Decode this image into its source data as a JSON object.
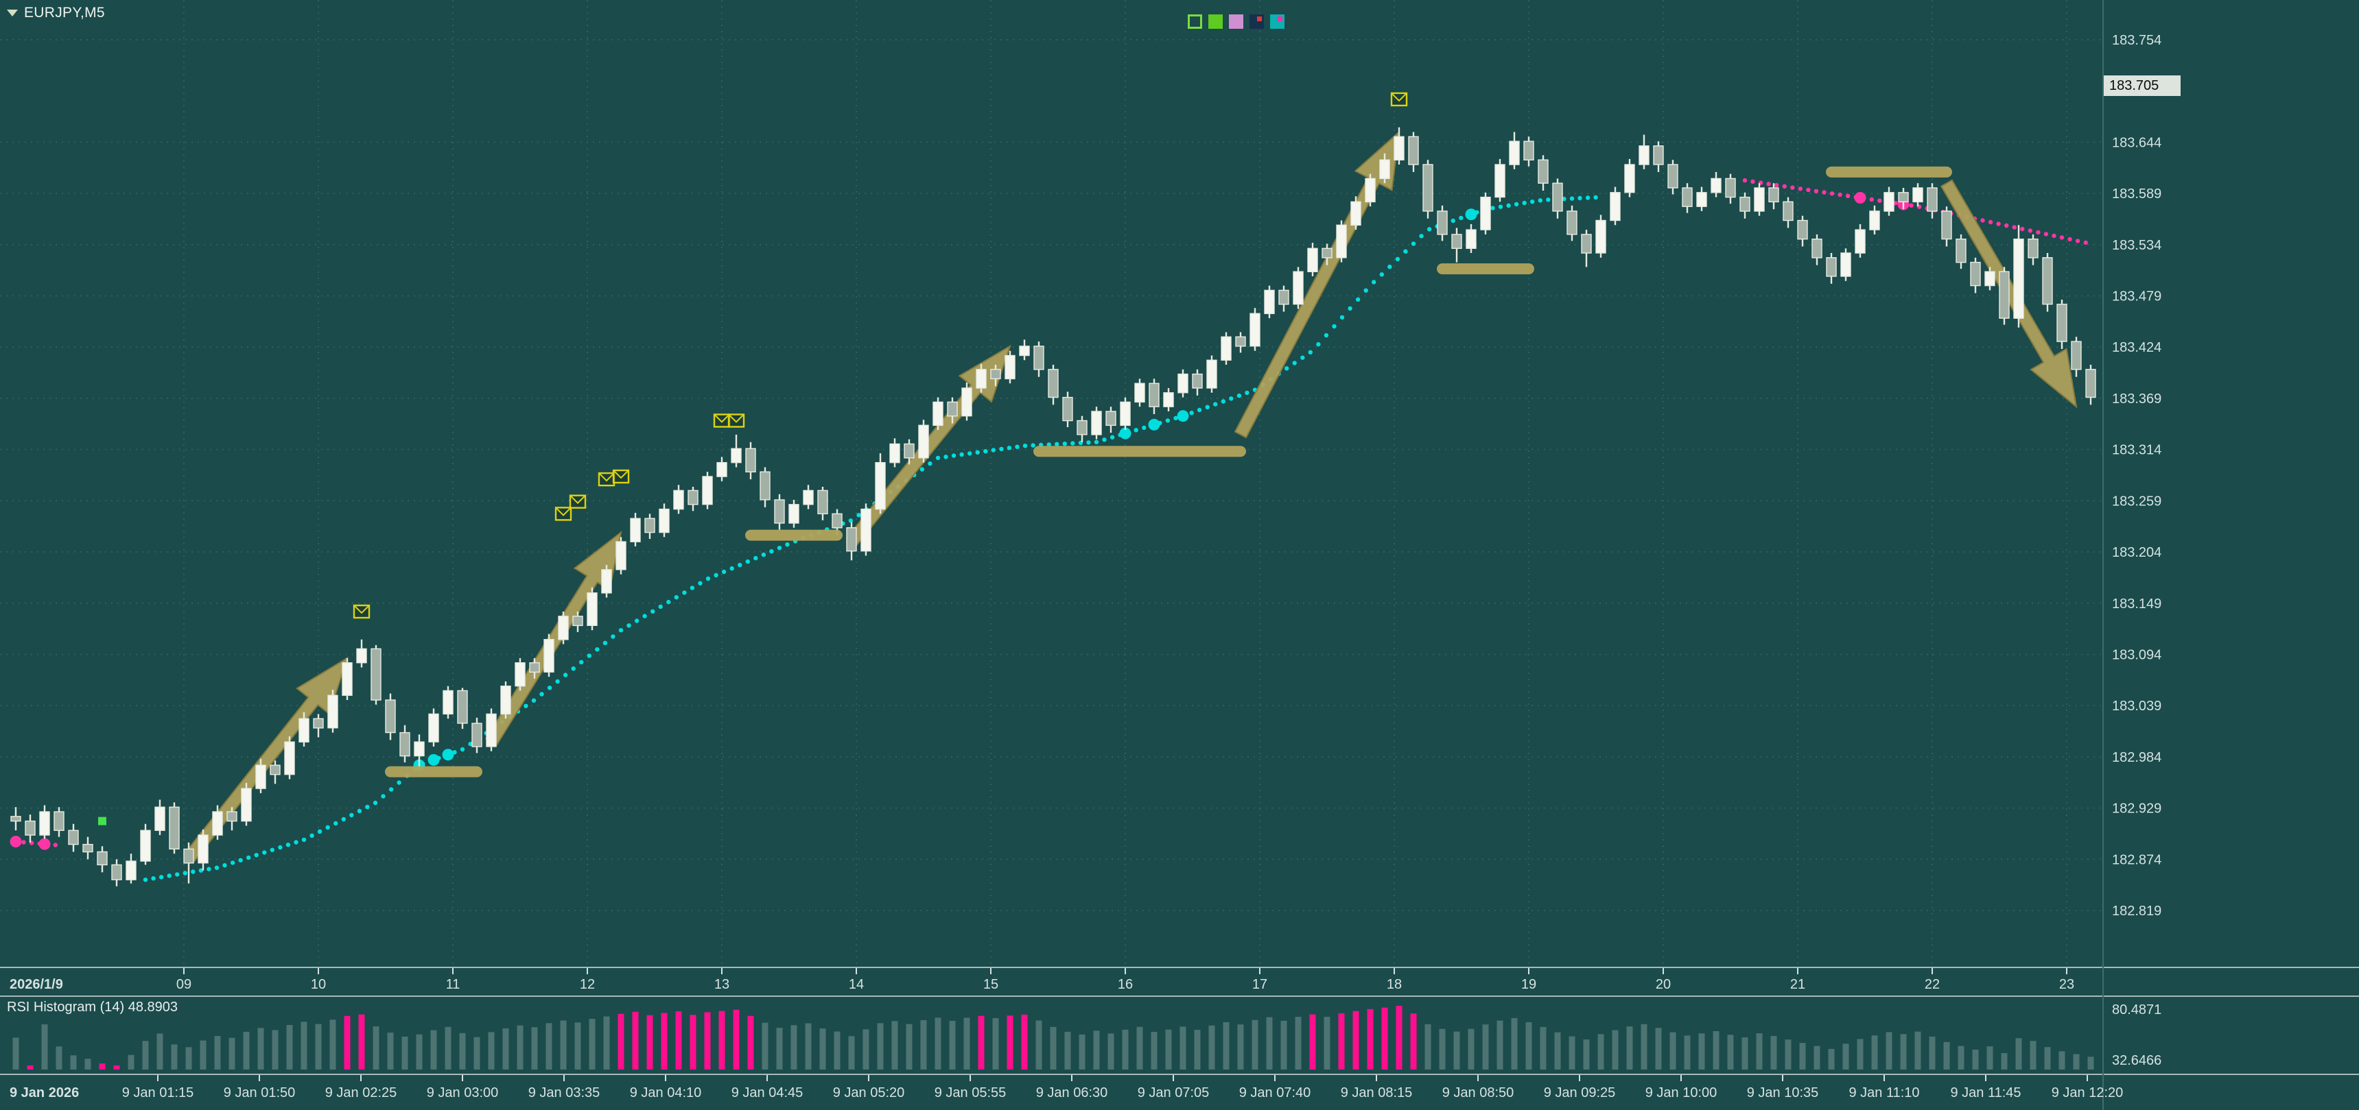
{
  "window": {
    "symbol_label": "EURJPY,M5"
  },
  "toolbar_icons": [
    {
      "name": "hollow-green-square-icon",
      "style": "outline",
      "color": "#7bdc40"
    },
    {
      "name": "green-square-icon",
      "style": "fill",
      "color": "#5ecb21"
    },
    {
      "name": "plum-square-icon",
      "style": "fill",
      "color": "#d08fd0"
    },
    {
      "name": "navy-candle-icon",
      "style": "fill",
      "color": "#16314d",
      "accent": "#e03a3a"
    },
    {
      "name": "teal-wave-icon",
      "style": "fill",
      "color": "#0eb0b0",
      "accent": "#ff2fa4"
    }
  ],
  "price_axis": {
    "current_price": "183.705",
    "labels": [
      "183.754",
      "183.644",
      "183.589",
      "183.534",
      "183.479",
      "183.424",
      "183.369",
      "183.314",
      "183.259",
      "183.204",
      "183.149",
      "183.094",
      "183.039",
      "182.984",
      "182.929",
      "182.874",
      "182.819"
    ]
  },
  "time_axis": {
    "date_label": "2026/1/9",
    "hour_labels": [
      "09",
      "10",
      "11",
      "12",
      "13",
      "14",
      "15",
      "16",
      "17",
      "18",
      "19",
      "20",
      "21",
      "22",
      "23"
    ]
  },
  "bottom_axis": {
    "labels": [
      "9 Jan 2026",
      "9 Jan 01:15",
      "9 Jan 01:50",
      "9 Jan 02:25",
      "9 Jan 03:00",
      "9 Jan 03:35",
      "9 Jan 04:10",
      "9 Jan 04:45",
      "9 Jan 05:20",
      "9 Jan 05:55",
      "9 Jan 06:30",
      "9 Jan 07:05",
      "9 Jan 07:40",
      "9 Jan 08:15",
      "9 Jan 08:50",
      "9 Jan 09:25",
      "9 Jan 10:00",
      "9 Jan 10:35",
      "9 Jan 11:10",
      "9 Jan 11:45",
      "9 Jan 12:20"
    ]
  },
  "indicator": {
    "label": "RSI Histogram (14) 48.8903",
    "scale_max": "80.4871",
    "scale_min": "32.6466"
  },
  "colors": {
    "background": "#1b4b4b",
    "grid": "#2d6161",
    "bull": "#f5f6ef",
    "bear": "#a3b0a6",
    "wick": "#e7eae0",
    "trend_up": "#00dede",
    "trend_down": "#ff35a6",
    "olive": "#b1a35c",
    "olive_dark": "#877b3e",
    "yellow": "#ddd313",
    "buy": "#44e04e",
    "rsi_bar": "#4d7372",
    "rsi_hot": "#ff0e8e",
    "axis_text": "#d7e2e2",
    "separator": "#a9b9b9",
    "vseparator": "#3c6e6e",
    "price_box_bg": "#dde3dd",
    "price_box_text": "#0b0b0b"
  },
  "chart_data": {
    "type": "candlestick",
    "symbol": "EURJPY",
    "timeframe": "M5",
    "visible_price_min": 182.819,
    "visible_price_max": 183.754,
    "price_grid_step": 0.055,
    "candles": [
      [
        182.92,
        182.93,
        182.905,
        182.915
      ],
      [
        182.915,
        182.922,
        182.892,
        182.9
      ],
      [
        182.9,
        182.932,
        182.896,
        182.925
      ],
      [
        182.925,
        182.93,
        182.898,
        182.905
      ],
      [
        182.905,
        182.912,
        182.882,
        182.89
      ],
      [
        182.89,
        182.898,
        182.874,
        182.882
      ],
      [
        182.882,
        182.888,
        182.86,
        182.868
      ],
      [
        182.868,
        182.874,
        182.845,
        182.852
      ],
      [
        182.852,
        182.88,
        182.848,
        182.872
      ],
      [
        182.872,
        182.912,
        182.868,
        182.905
      ],
      [
        182.905,
        182.938,
        182.9,
        182.93
      ],
      [
        182.93,
        182.935,
        182.88,
        182.885
      ],
      [
        182.885,
        182.892,
        182.848,
        182.87
      ],
      [
        182.87,
        182.906,
        182.862,
        182.9
      ],
      [
        182.9,
        182.932,
        182.895,
        182.925
      ],
      [
        182.925,
        182.93,
        182.905,
        182.915
      ],
      [
        182.915,
        182.956,
        182.91,
        182.95
      ],
      [
        182.95,
        182.982,
        182.945,
        182.975
      ],
      [
        182.975,
        182.98,
        182.955,
        182.965
      ],
      [
        182.965,
        183.006,
        182.96,
        183.0
      ],
      [
        183.0,
        183.032,
        182.995,
        183.025
      ],
      [
        183.025,
        183.03,
        183.005,
        183.015
      ],
      [
        183.015,
        183.056,
        183.01,
        183.05
      ],
      [
        183.05,
        183.09,
        183.045,
        183.085
      ],
      [
        183.085,
        183.11,
        183.08,
        183.1
      ],
      [
        183.1,
        183.104,
        183.04,
        183.045
      ],
      [
        183.045,
        183.052,
        183.002,
        183.01
      ],
      [
        183.01,
        183.018,
        182.978,
        182.985
      ],
      [
        182.985,
        183.008,
        182.972,
        183.0
      ],
      [
        183.0,
        183.036,
        182.995,
        183.03
      ],
      [
        183.03,
        183.06,
        183.025,
        183.055
      ],
      [
        183.055,
        183.058,
        183.014,
        183.02
      ],
      [
        183.02,
        183.026,
        182.988,
        182.995
      ],
      [
        182.995,
        183.036,
        182.99,
        183.03
      ],
      [
        183.03,
        183.065,
        183.025,
        183.06
      ],
      [
        183.06,
        183.09,
        183.055,
        183.085
      ],
      [
        183.085,
        183.09,
        183.068,
        183.075
      ],
      [
        183.075,
        183.116,
        183.07,
        183.11
      ],
      [
        183.11,
        183.14,
        183.105,
        183.135
      ],
      [
        183.135,
        183.14,
        183.118,
        183.125
      ],
      [
        183.125,
        183.166,
        183.12,
        183.16
      ],
      [
        183.16,
        183.19,
        183.155,
        183.185
      ],
      [
        183.185,
        183.22,
        183.18,
        183.215
      ],
      [
        183.215,
        183.246,
        183.21,
        183.24
      ],
      [
        183.24,
        183.245,
        183.218,
        183.225
      ],
      [
        183.225,
        183.256,
        183.22,
        183.25
      ],
      [
        183.25,
        183.276,
        183.245,
        183.27
      ],
      [
        183.27,
        183.274,
        183.248,
        183.255
      ],
      [
        183.255,
        183.29,
        183.25,
        183.285
      ],
      [
        183.285,
        183.306,
        183.28,
        183.3
      ],
      [
        183.3,
        183.33,
        183.295,
        183.315
      ],
      [
        183.315,
        183.322,
        183.282,
        183.29
      ],
      [
        183.29,
        183.295,
        183.252,
        183.26
      ],
      [
        183.26,
        183.266,
        183.228,
        183.235
      ],
      [
        183.235,
        183.26,
        183.23,
        183.255
      ],
      [
        183.255,
        183.276,
        183.25,
        183.27
      ],
      [
        183.27,
        183.274,
        183.238,
        183.245
      ],
      [
        183.245,
        183.25,
        183.222,
        183.23
      ],
      [
        183.23,
        183.236,
        183.195,
        183.205
      ],
      [
        183.205,
        183.256,
        183.2,
        183.25
      ],
      [
        183.25,
        183.31,
        183.245,
        183.3
      ],
      [
        183.3,
        183.326,
        183.295,
        183.32
      ],
      [
        183.32,
        183.325,
        183.298,
        183.305
      ],
      [
        183.305,
        183.346,
        183.3,
        183.34
      ],
      [
        183.34,
        183.37,
        183.335,
        183.365
      ],
      [
        183.365,
        183.37,
        183.342,
        183.35
      ],
      [
        183.35,
        183.386,
        183.345,
        183.38
      ],
      [
        183.38,
        183.406,
        183.375,
        183.4
      ],
      [
        183.4,
        183.405,
        183.382,
        183.39
      ],
      [
        183.39,
        183.42,
        183.385,
        183.415
      ],
      [
        183.415,
        183.432,
        183.41,
        183.425
      ],
      [
        183.425,
        183.43,
        183.392,
        183.4
      ],
      [
        183.4,
        183.405,
        183.362,
        183.37
      ],
      [
        183.37,
        183.376,
        183.338,
        183.345
      ],
      [
        183.345,
        183.35,
        183.322,
        183.33
      ],
      [
        183.33,
        183.36,
        183.325,
        183.355
      ],
      [
        183.355,
        183.36,
        183.332,
        183.34
      ],
      [
        183.34,
        183.37,
        183.335,
        183.365
      ],
      [
        183.365,
        183.39,
        183.36,
        183.385
      ],
      [
        183.385,
        183.39,
        183.352,
        183.36
      ],
      [
        183.36,
        183.38,
        183.355,
        183.375
      ],
      [
        183.375,
        183.4,
        183.37,
        183.395
      ],
      [
        183.395,
        183.4,
        183.372,
        183.38
      ],
      [
        183.38,
        183.415,
        183.375,
        183.41
      ],
      [
        183.41,
        183.44,
        183.405,
        183.435
      ],
      [
        183.435,
        183.44,
        183.418,
        183.425
      ],
      [
        183.425,
        183.466,
        183.42,
        183.46
      ],
      [
        183.46,
        183.49,
        183.455,
        183.485
      ],
      [
        183.485,
        183.49,
        183.462,
        183.47
      ],
      [
        183.47,
        183.51,
        183.465,
        183.505
      ],
      [
        183.505,
        183.536,
        183.5,
        183.53
      ],
      [
        183.53,
        183.535,
        183.512,
        183.52
      ],
      [
        183.52,
        183.56,
        183.515,
        183.555
      ],
      [
        183.555,
        183.586,
        183.55,
        183.58
      ],
      [
        183.58,
        183.61,
        183.575,
        183.605
      ],
      [
        183.605,
        183.632,
        183.6,
        183.625
      ],
      [
        183.625,
        183.66,
        183.62,
        183.65
      ],
      [
        183.65,
        183.655,
        183.612,
        183.62
      ],
      [
        183.62,
        183.625,
        183.562,
        183.57
      ],
      [
        183.57,
        183.576,
        183.538,
        183.545
      ],
      [
        183.545,
        183.552,
        183.515,
        183.53
      ],
      [
        183.53,
        183.556,
        183.525,
        183.55
      ],
      [
        183.55,
        183.59,
        183.545,
        183.585
      ],
      [
        183.585,
        183.626,
        183.58,
        183.62
      ],
      [
        183.62,
        183.655,
        183.615,
        183.645
      ],
      [
        183.645,
        183.65,
        183.618,
        183.625
      ],
      [
        183.625,
        183.63,
        183.592,
        183.6
      ],
      [
        183.6,
        183.605,
        183.562,
        183.57
      ],
      [
        183.57,
        183.576,
        183.538,
        183.545
      ],
      [
        183.545,
        183.55,
        183.51,
        183.525
      ],
      [
        183.525,
        183.566,
        183.52,
        183.56
      ],
      [
        183.56,
        183.596,
        183.555,
        183.59
      ],
      [
        183.59,
        183.626,
        183.585,
        183.62
      ],
      [
        183.62,
        183.652,
        183.615,
        183.64
      ],
      [
        183.64,
        183.645,
        183.612,
        183.62
      ],
      [
        183.62,
        183.625,
        183.588,
        183.595
      ],
      [
        183.595,
        183.6,
        183.568,
        183.575
      ],
      [
        183.575,
        183.596,
        183.57,
        183.59
      ],
      [
        183.59,
        183.612,
        183.585,
        183.605
      ],
      [
        183.605,
        183.61,
        183.578,
        183.585
      ],
      [
        183.585,
        183.59,
        183.562,
        183.57
      ],
      [
        183.57,
        183.6,
        183.565,
        183.595
      ],
      [
        183.595,
        183.6,
        183.572,
        183.58
      ],
      [
        183.58,
        183.585,
        183.552,
        183.56
      ],
      [
        183.56,
        183.565,
        183.532,
        183.54
      ],
      [
        183.54,
        183.545,
        183.512,
        183.52
      ],
      [
        183.52,
        183.525,
        183.492,
        183.5
      ],
      [
        183.5,
        183.53,
        183.495,
        183.525
      ],
      [
        183.525,
        183.556,
        183.52,
        183.55
      ],
      [
        183.55,
        183.576,
        183.545,
        183.57
      ],
      [
        183.57,
        183.596,
        183.565,
        183.59
      ],
      [
        183.59,
        183.595,
        183.572,
        183.58
      ],
      [
        183.58,
        183.6,
        183.575,
        183.595
      ],
      [
        183.595,
        183.6,
        183.562,
        183.57
      ],
      [
        183.57,
        183.575,
        183.532,
        183.54
      ],
      [
        183.54,
        183.545,
        183.508,
        183.515
      ],
      [
        183.515,
        183.52,
        183.482,
        183.49
      ],
      [
        183.49,
        183.51,
        183.485,
        183.505
      ],
      [
        183.505,
        183.51,
        183.448,
        183.455
      ],
      [
        183.455,
        183.555,
        183.445,
        183.54
      ],
      [
        183.54,
        183.545,
        183.512,
        183.52
      ],
      [
        183.52,
        183.525,
        183.462,
        183.47
      ],
      [
        183.47,
        183.475,
        183.422,
        183.43
      ],
      [
        183.43,
        183.435,
        183.392,
        183.4
      ],
      [
        183.4,
        183.405,
        183.362,
        183.37
      ]
    ],
    "trend_line_up_points": [
      [
        9,
        182.852
      ],
      [
        14,
        182.865
      ],
      [
        20,
        182.895
      ],
      [
        25,
        182.935
      ],
      [
        28,
        182.975
      ],
      [
        31,
        182.992
      ],
      [
        36,
        183.045
      ],
      [
        42,
        183.12
      ],
      [
        48,
        183.175
      ],
      [
        54,
        183.215
      ],
      [
        58,
        183.238
      ],
      [
        64,
        183.305
      ],
      [
        70,
        183.318
      ],
      [
        75,
        183.322
      ],
      [
        81,
        183.35
      ],
      [
        86,
        183.378
      ],
      [
        90,
        183.42
      ],
      [
        94,
        183.49
      ],
      [
        98,
        183.55
      ],
      [
        102,
        183.572
      ],
      [
        106,
        183.582
      ],
      [
        110,
        183.585
      ]
    ],
    "trend_line_down_left_points": [
      [
        0,
        182.893
      ],
      [
        3,
        182.889
      ]
    ],
    "trend_line_down_right_points": [
      [
        120,
        183.603
      ],
      [
        132,
        183.575
      ],
      [
        144,
        183.535
      ]
    ],
    "trend_markers_up": [
      28,
      29,
      30,
      77,
      79,
      81,
      101
    ],
    "trend_markers_down_left": [
      0,
      2
    ],
    "trend_markers_down_right": [
      128,
      131
    ],
    "buy_markers": [
      [
        6,
        182.915
      ]
    ],
    "arrows": [
      {
        "from": [
          12,
          182.875
        ],
        "to": [
          23,
          183.09
        ],
        "dir": "up"
      },
      {
        "from": [
          33,
          183.0
        ],
        "to": [
          42,
          183.225
        ],
        "dir": "up"
      },
      {
        "from": [
          58,
          183.215
        ],
        "to": [
          69,
          183.425
        ],
        "dir": "up"
      },
      {
        "from": [
          85,
          183.33
        ],
        "to": [
          96,
          183.655
        ],
        "dir": "up"
      },
      {
        "from": [
          134,
          183.6
        ],
        "to": [
          143,
          183.36
        ],
        "dir": "down"
      }
    ],
    "zones": [
      [
        26,
        32,
        182.968
      ],
      [
        51,
        57,
        183.222
      ],
      [
        71,
        85,
        183.312
      ],
      [
        99,
        105,
        183.508
      ],
      [
        126,
        134,
        183.612
      ]
    ],
    "envelope_signals": [
      [
        24,
        183.14
      ],
      [
        38,
        183.245
      ],
      [
        39,
        183.258
      ],
      [
        41,
        183.282
      ],
      [
        42,
        183.285
      ],
      [
        49,
        183.345
      ],
      [
        50,
        183.345
      ],
      [
        96,
        183.69
      ]
    ],
    "rsi_period": 14,
    "rsi_hot_high": 70,
    "rsi_hot_low": 30
  }
}
